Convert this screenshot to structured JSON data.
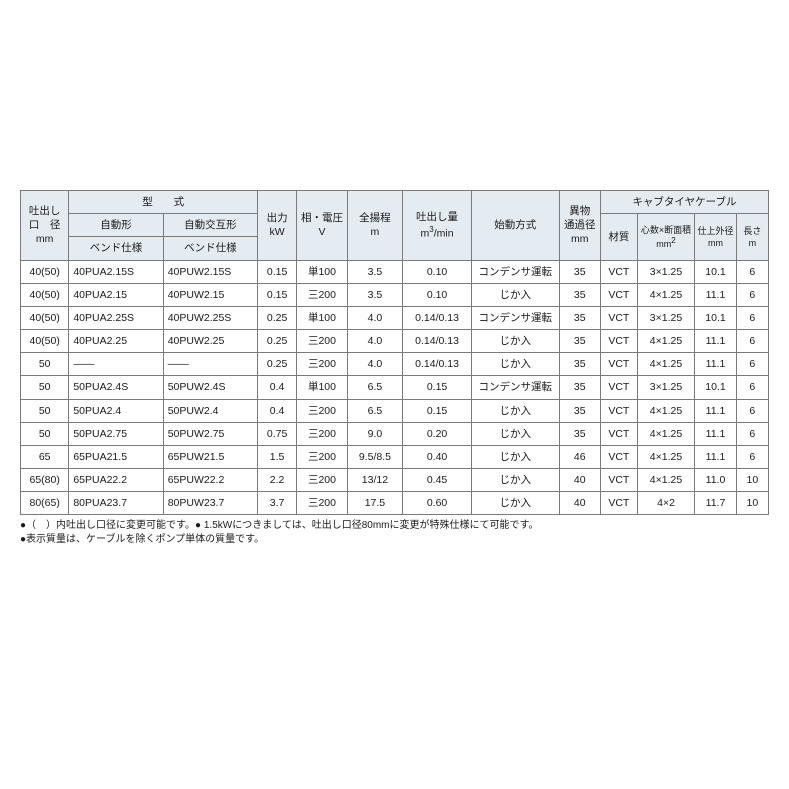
{
  "table": {
    "headers": {
      "discharge_dia": "吐出し<br>口　径<br>mm",
      "model_group": "型　　式",
      "model_auto": "自動形",
      "model_auto_alt": "自動交互形",
      "model_bend": "ベンド仕様",
      "output": "出力<br>kW",
      "phase_volt": "相・電圧<br>V",
      "total_head": "全揚程<br>m",
      "discharge": "吐出し量<br>m<span class=\"sup\">3</span>/min",
      "start_method": "始動方式",
      "pass_dia": "異物<br>通過径<br>mm",
      "cable_group": "キャブタイヤケーブル",
      "cable_mat": "材質",
      "cable_cores": "心数×断面積<br>mm<span class=\"sup\">2</span>",
      "cable_od": "仕上外径<br>mm",
      "cable_len": "長さ<br>m"
    },
    "rows": [
      {
        "dia": "40(50)",
        "m1": "40PUA2.15S",
        "m2": "40PUW2.15S",
        "kw": "0.15",
        "v": "単100",
        "head": "3.5",
        "dis": "0.10",
        "start": "コンデンサ運転",
        "pass": "35",
        "mat": "VCT",
        "core": "3×1.25",
        "od": "10.1",
        "len": "6"
      },
      {
        "dia": "40(50)",
        "m1": "40PUA2.15",
        "m2": "40PUW2.15",
        "kw": "0.15",
        "v": "三200",
        "head": "3.5",
        "dis": "0.10",
        "start": "じか入",
        "pass": "35",
        "mat": "VCT",
        "core": "4×1.25",
        "od": "11.1",
        "len": "6"
      },
      {
        "dia": "40(50)",
        "m1": "40PUA2.25S",
        "m2": "40PUW2.25S",
        "kw": "0.25",
        "v": "単100",
        "head": "4.0",
        "dis": "0.14/0.13",
        "start": "コンデンサ運転",
        "pass": "35",
        "mat": "VCT",
        "core": "3×1.25",
        "od": "10.1",
        "len": "6"
      },
      {
        "dia": "40(50)",
        "m1": "40PUA2.25",
        "m2": "40PUW2.25",
        "kw": "0.25",
        "v": "三200",
        "head": "4.0",
        "dis": "0.14/0.13",
        "start": "じか入",
        "pass": "35",
        "mat": "VCT",
        "core": "4×1.25",
        "od": "11.1",
        "len": "6"
      },
      {
        "dia": "50",
        "m1": "——",
        "m2": "——",
        "kw": "0.25",
        "v": "三200",
        "head": "4.0",
        "dis": "0.14/0.13",
        "start": "じか入",
        "pass": "35",
        "mat": "VCT",
        "core": "4×1.25",
        "od": "11.1",
        "len": "6"
      },
      {
        "dia": "50",
        "m1": "50PUA2.4S",
        "m2": "50PUW2.4S",
        "kw": "0.4",
        "v": "単100",
        "head": "6.5",
        "dis": "0.15",
        "start": "コンデンサ運転",
        "pass": "35",
        "mat": "VCT",
        "core": "3×1.25",
        "od": "10.1",
        "len": "6"
      },
      {
        "dia": "50",
        "m1": "50PUA2.4",
        "m2": "50PUW2.4",
        "kw": "0.4",
        "v": "三200",
        "head": "6.5",
        "dis": "0.15",
        "start": "じか入",
        "pass": "35",
        "mat": "VCT",
        "core": "4×1.25",
        "od": "11.1",
        "len": "6"
      },
      {
        "dia": "50",
        "m1": "50PUA2.75",
        "m2": "50PUW2.75",
        "kw": "0.75",
        "v": "三200",
        "head": "9.0",
        "dis": "0.20",
        "start": "じか入",
        "pass": "35",
        "mat": "VCT",
        "core": "4×1.25",
        "od": "11.1",
        "len": "6"
      },
      {
        "dia": "65",
        "m1": "65PUA21.5",
        "m2": "65PUW21.5",
        "kw": "1.5",
        "v": "三200",
        "head": "9.5/8.5",
        "dis": "0.40",
        "start": "じか入",
        "pass": "46",
        "mat": "VCT",
        "core": "4×1.25",
        "od": "11.1",
        "len": "6"
      },
      {
        "dia": "65(80)",
        "m1": "65PUA22.2",
        "m2": "65PUW22.2",
        "kw": "2.2",
        "v": "三200",
        "head": "13/12",
        "dis": "0.45",
        "start": "じか入",
        "pass": "40",
        "mat": "VCT",
        "core": "4×1.25",
        "od": "11.0",
        "len": "10"
      },
      {
        "dia": "80(65)",
        "m1": "80PUA23.7",
        "m2": "80PUW23.7",
        "kw": "3.7",
        "v": "三200",
        "head": "17.5",
        "dis": "0.60",
        "start": "じか入",
        "pass": "40",
        "mat": "VCT",
        "core": "4×2",
        "od": "11.7",
        "len": "10"
      }
    ]
  },
  "notes": {
    "line1": "●（　）内吐出し口径に変更可能です。● 1.5kWにつきましては、吐出し口径80mmに変更が特殊仕様にて可能です。",
    "line2": "●表示質量は、ケーブルを除くポンプ単体の質量です。"
  },
  "style": {
    "border_color": "#7a7a7a",
    "header_bg": "#e4ecf2",
    "body_bg": "#ffffff",
    "text_color": "#1a1a1a",
    "font_size_cell": 10.5,
    "font_size_note": 10,
    "padding_top": 190
  }
}
